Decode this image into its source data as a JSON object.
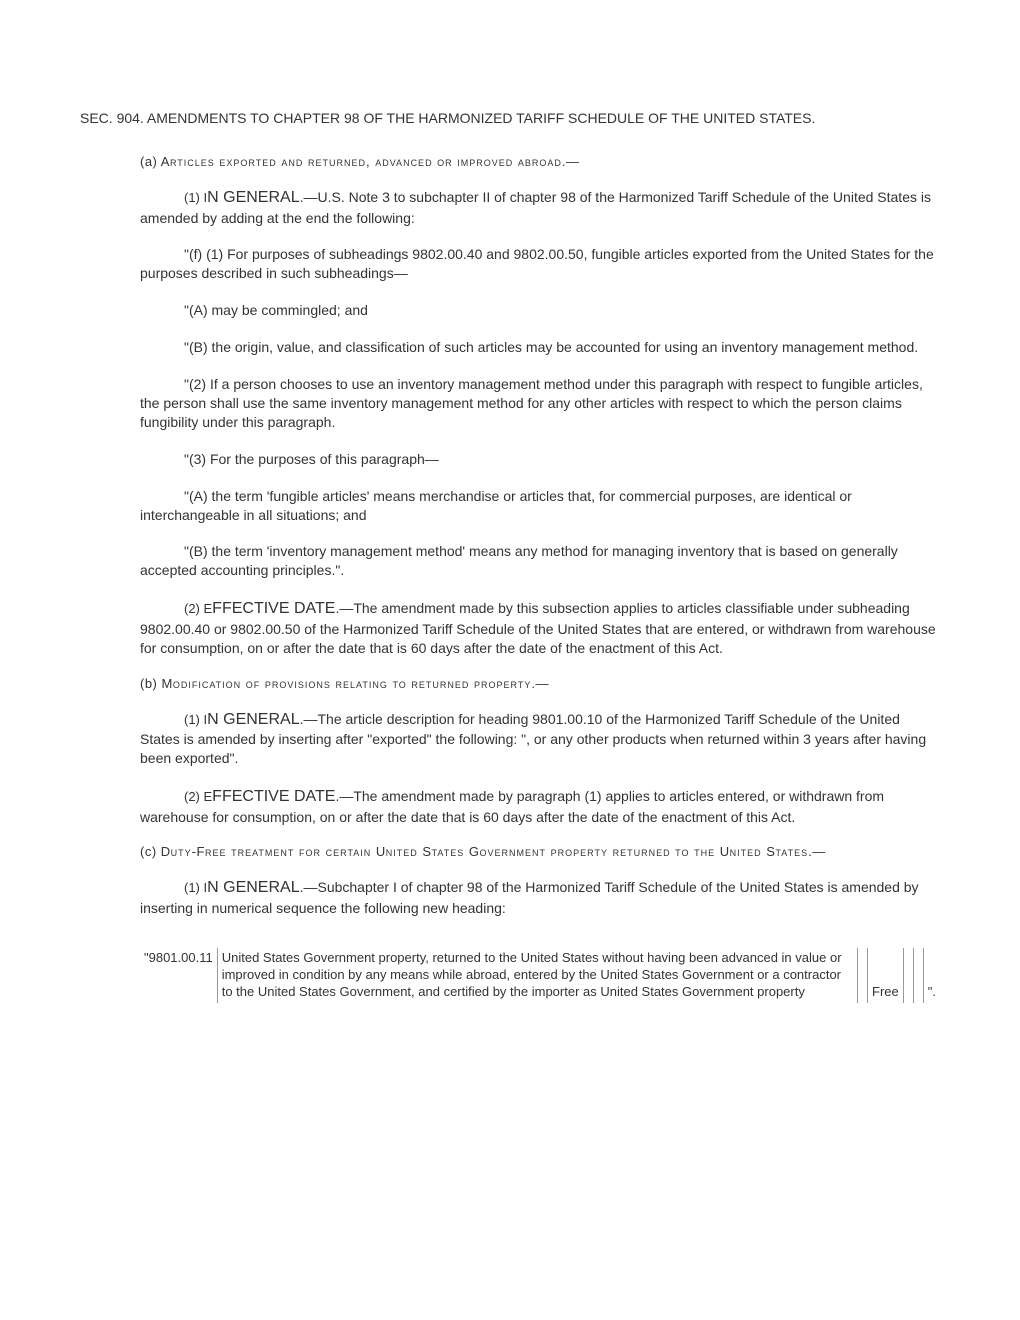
{
  "section_title": "SEC. 904. AMENDMENTS TO CHAPTER 98 OF THE HARMONIZED TARIFF SCHEDULE OF THE UNITED STATES.",
  "sub_a": {
    "heading_prefix": "(a) A",
    "heading_caps": "rticles exported and returned, advanced or improved abroad",
    "heading_suffix": ".—",
    "p1_prefix": "(1) I",
    "p1_big": "N GENERAL",
    "p1_text": ".—U.S. Note 3 to subchapter II of chapter 98 of the Harmonized Tariff Schedule of the United States is amended by adding at the end the following:",
    "quote_f1": "\"(f) (1) For purposes of subheadings 9802.00.40 and 9802.00.50, fungible articles exported from the United States for the purposes described in such subheadings—",
    "quote_f1_A": "\"(A) may be commingled; and",
    "quote_f1_B": "\"(B) the origin, value, and classification of such articles may be accounted for using an inventory management method.",
    "quote_2": "\"(2) If a person chooses to use an inventory management method under this paragraph with respect to fungible articles, the person shall use the same inventory management method for any other articles with respect to which the person claims fungibility under this paragraph.",
    "quote_3": "\"(3) For the purposes of this paragraph—",
    "quote_3_A": "\"(A) the term 'fungible articles' means merchandise or articles that, for commercial purposes, are identical or interchangeable in all situations; and",
    "quote_3_B": "\"(B) the term 'inventory management method' means any method for managing inventory that is based on generally accepted accounting principles.\".",
    "p2_prefix": "(2) E",
    "p2_big": "FFECTIVE DATE",
    "p2_text": ".—The amendment made by this subsection applies to articles classifiable under subheading 9802.00.40 or 9802.00.50 of the Harmonized Tariff Schedule of the United States that are entered, or withdrawn from warehouse for consumption, on or after the date that is 60 days after the date of the enactment of this Act."
  },
  "sub_b": {
    "heading_prefix": "(b) M",
    "heading_caps": "odification of provisions relating to returned property",
    "heading_suffix": ".—",
    "p1_prefix": "(1) I",
    "p1_big": "N GENERAL",
    "p1_text": ".—The article description for heading 9801.00.10 of the Harmonized Tariff Schedule of the United States is amended by inserting after \"exported\" the following: \", or any other products when returned within 3 years after having been exported\".",
    "p2_prefix": "(2) E",
    "p2_big": "FFECTIVE DATE",
    "p2_text": ".—The amendment made by paragraph (1) applies to articles entered, or withdrawn from warehouse for consumption, on or after the date that is 60 days after the date of the enactment of this Act."
  },
  "sub_c": {
    "heading_prefix": "(c) D",
    "heading_caps1": "uty",
    "heading_mid1": "-F",
    "heading_caps2": "ree treatment for certain ",
    "heading_mid2": "U",
    "heading_caps3": "nited ",
    "heading_mid3": "S",
    "heading_caps4": "tates ",
    "heading_mid4": "G",
    "heading_caps5": "overnment property returned to the ",
    "heading_mid5": "U",
    "heading_caps6": "nited ",
    "heading_mid6": "S",
    "heading_caps7": "tates",
    "heading_suffix": ".—",
    "p1_prefix": "(1) I",
    "p1_big": "N GENERAL",
    "p1_text": ".—Subchapter I of chapter 98 of the Harmonized Tariff Schedule of the United States is amended by inserting in numerical sequence the following new heading:"
  },
  "table": {
    "col1": "\"9801.00.11",
    "col2": "United States Government property, returned to the United States without having been advanced in value or improved in condition by any means while abroad, entered by the United States Government or a contractor to the United States Government, and certified by the importer as United States Government property",
    "col3": "Free",
    "col_last": " \"."
  }
}
